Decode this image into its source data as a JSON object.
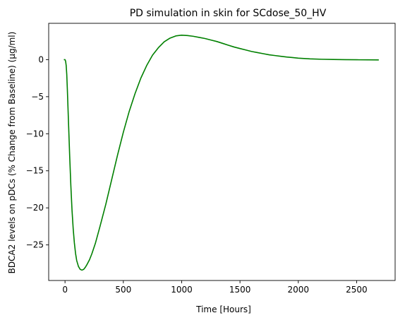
{
  "chart_data": {
    "type": "line",
    "title": "PD simulation in skin for SCdose_50_HV",
    "xlabel": "Time [Hours]",
    "ylabel": "BDCA2 levels on pDCs (% Change from Baseline) (μg/ml)",
    "xlim": [
      -140,
      2830
    ],
    "ylim": [
      -29.8,
      4.9
    ],
    "xticks": [
      0,
      500,
      1000,
      1500,
      2000,
      2500
    ],
    "yticks": [
      -25,
      -20,
      -15,
      -10,
      -5,
      0
    ],
    "grid": false,
    "series": [
      {
        "color": "#008000",
        "x": [
          -10,
          0,
          5,
          10,
          15,
          20,
          30,
          40,
          50,
          60,
          70,
          80,
          90,
          100,
          115,
          130,
          145,
          160,
          175,
          190,
          210,
          230,
          260,
          300,
          350,
          400,
          450,
          500,
          550,
          600,
          650,
          700,
          750,
          800,
          850,
          900,
          950,
          1000,
          1050,
          1100,
          1150,
          1200,
          1250,
          1300,
          1350,
          1400,
          1450,
          1500,
          1550,
          1600,
          1650,
          1700,
          1750,
          1800,
          1850,
          1900,
          1950,
          2000,
          2100,
          2200,
          2300,
          2400,
          2500,
          2600,
          2690
        ],
        "y": [
          0,
          0,
          -0.2,
          -0.8,
          -2,
          -4,
          -8.5,
          -13,
          -17,
          -20.3,
          -22.8,
          -24.7,
          -26.1,
          -27.1,
          -27.9,
          -28.3,
          -28.4,
          -28.3,
          -28.0,
          -27.6,
          -27.0,
          -26.2,
          -24.8,
          -22.5,
          -19.5,
          -16.2,
          -12.9,
          -9.8,
          -7.0,
          -4.6,
          -2.5,
          -0.8,
          0.6,
          1.6,
          2.4,
          2.9,
          3.2,
          3.3,
          3.25,
          3.15,
          3.0,
          2.85,
          2.65,
          2.45,
          2.2,
          1.95,
          1.7,
          1.5,
          1.3,
          1.1,
          0.95,
          0.8,
          0.65,
          0.55,
          0.45,
          0.35,
          0.28,
          0.2,
          0.1,
          0.05,
          0.02,
          0.0,
          -0.02,
          -0.03,
          -0.04
        ]
      }
    ]
  }
}
